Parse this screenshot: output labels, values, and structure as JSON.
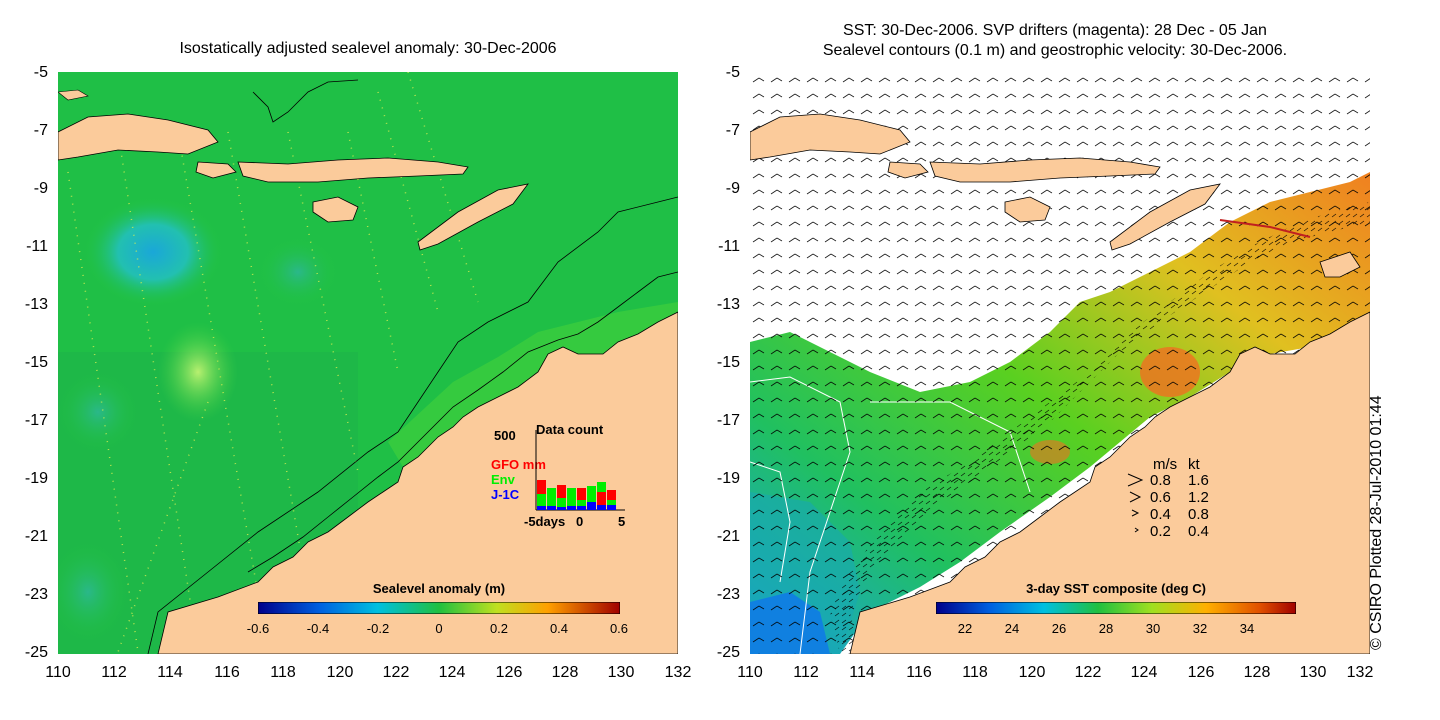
{
  "left_panel": {
    "title": "Isostatically adjusted sealevel anomaly: 30-Dec-2006",
    "y_ticks": [
      "-5",
      "-7",
      "-9",
      "-11",
      "-13",
      "-15",
      "-17",
      "-19",
      "-21",
      "-23",
      "-25"
    ],
    "x_ticks": [
      "110",
      "112",
      "114",
      "116",
      "118",
      "120",
      "122",
      "124",
      "126",
      "128",
      "130",
      "132"
    ],
    "colorbar": {
      "title": "Sealevel anomaly (m)",
      "labels": [
        "-0.6",
        "-0.4",
        "-0.2",
        "0",
        "0.2",
        "0.4",
        "0.6"
      ]
    },
    "data_count": {
      "title": "Data count",
      "ymax_label": "500",
      "legend": [
        {
          "name": "GFO mm",
          "color": "#ff0000"
        },
        {
          "name": "Env",
          "color": "#00ee00"
        },
        {
          "name": "J-1C",
          "color": "#0000ff"
        }
      ],
      "x_labels": [
        "-5days",
        "0",
        "5"
      ]
    }
  },
  "right_panel": {
    "title_line1": "SST: 30-Dec-2006. SVP drifters (magenta): 28 Dec - 05 Jan",
    "title_line2": "Sealevel contours (0.1 m) and geostrophic velocity: 30-Dec-2006.",
    "y_ticks": [
      "-5",
      "-7",
      "-9",
      "-11",
      "-13",
      "-15",
      "-17",
      "-19",
      "-21",
      "-23",
      "-25"
    ],
    "x_ticks": [
      "110",
      "112",
      "114",
      "116",
      "118",
      "120",
      "122",
      "124",
      "126",
      "128",
      "130",
      "132"
    ],
    "colorbar": {
      "title": "3-day SST composite (deg C)",
      "labels": [
        "22",
        "24",
        "26",
        "28",
        "30",
        "32",
        "34"
      ]
    },
    "velocity_key": {
      "header_ms": "m/s",
      "header_kt": "kt",
      "rows": [
        {
          "ms": "0.8",
          "kt": "1.6"
        },
        {
          "ms": "0.6",
          "kt": "1.2"
        },
        {
          "ms": "0.4",
          "kt": "0.8"
        },
        {
          "ms": "0.2",
          "kt": "0.4"
        }
      ]
    }
  },
  "copyright": "© CSIRO Plotted 28-Jul-2010 01:44",
  "colors": {
    "land": "#fbcb9b",
    "ocean_green": "#22c43a",
    "ocean_dark": "#17a83a",
    "missing": "#ffffff"
  }
}
